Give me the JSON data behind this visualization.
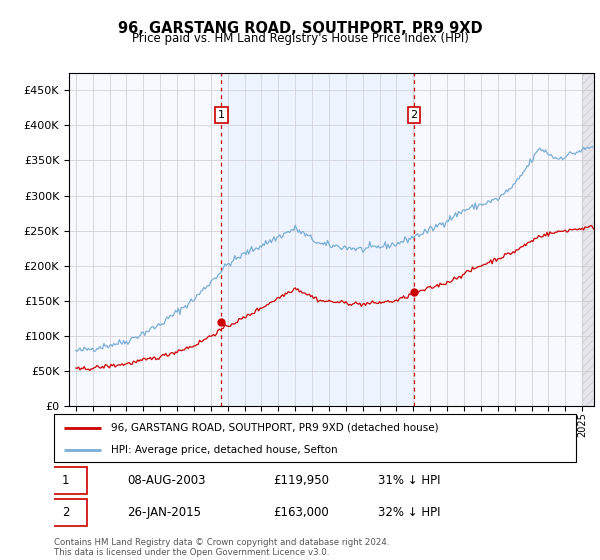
{
  "title": "96, GARSTANG ROAD, SOUTHPORT, PR9 9XD",
  "subtitle": "Price paid vs. HM Land Registry's House Price Index (HPI)",
  "legend_line1": "96, GARSTANG ROAD, SOUTHPORT, PR9 9XD (detached house)",
  "legend_line2": "HPI: Average price, detached house, Sefton",
  "annotation1_date": "08-AUG-2003",
  "annotation1_price": "£119,950",
  "annotation1_hpi": "31% ↓ HPI",
  "annotation2_date": "26-JAN-2015",
  "annotation2_price": "£163,000",
  "annotation2_hpi": "32% ↓ HPI",
  "footer": "Contains HM Land Registry data © Crown copyright and database right 2024.\nThis data is licensed under the Open Government Licence v3.0.",
  "hpi_color": "#7aaed6",
  "price_color": "#cc0000",
  "vline_color": "#cc0000",
  "shade_color": "#ddeeff",
  "ylim": [
    0,
    475000
  ],
  "yticks": [
    0,
    50000,
    100000,
    150000,
    200000,
    250000,
    300000,
    350000,
    400000,
    450000
  ]
}
